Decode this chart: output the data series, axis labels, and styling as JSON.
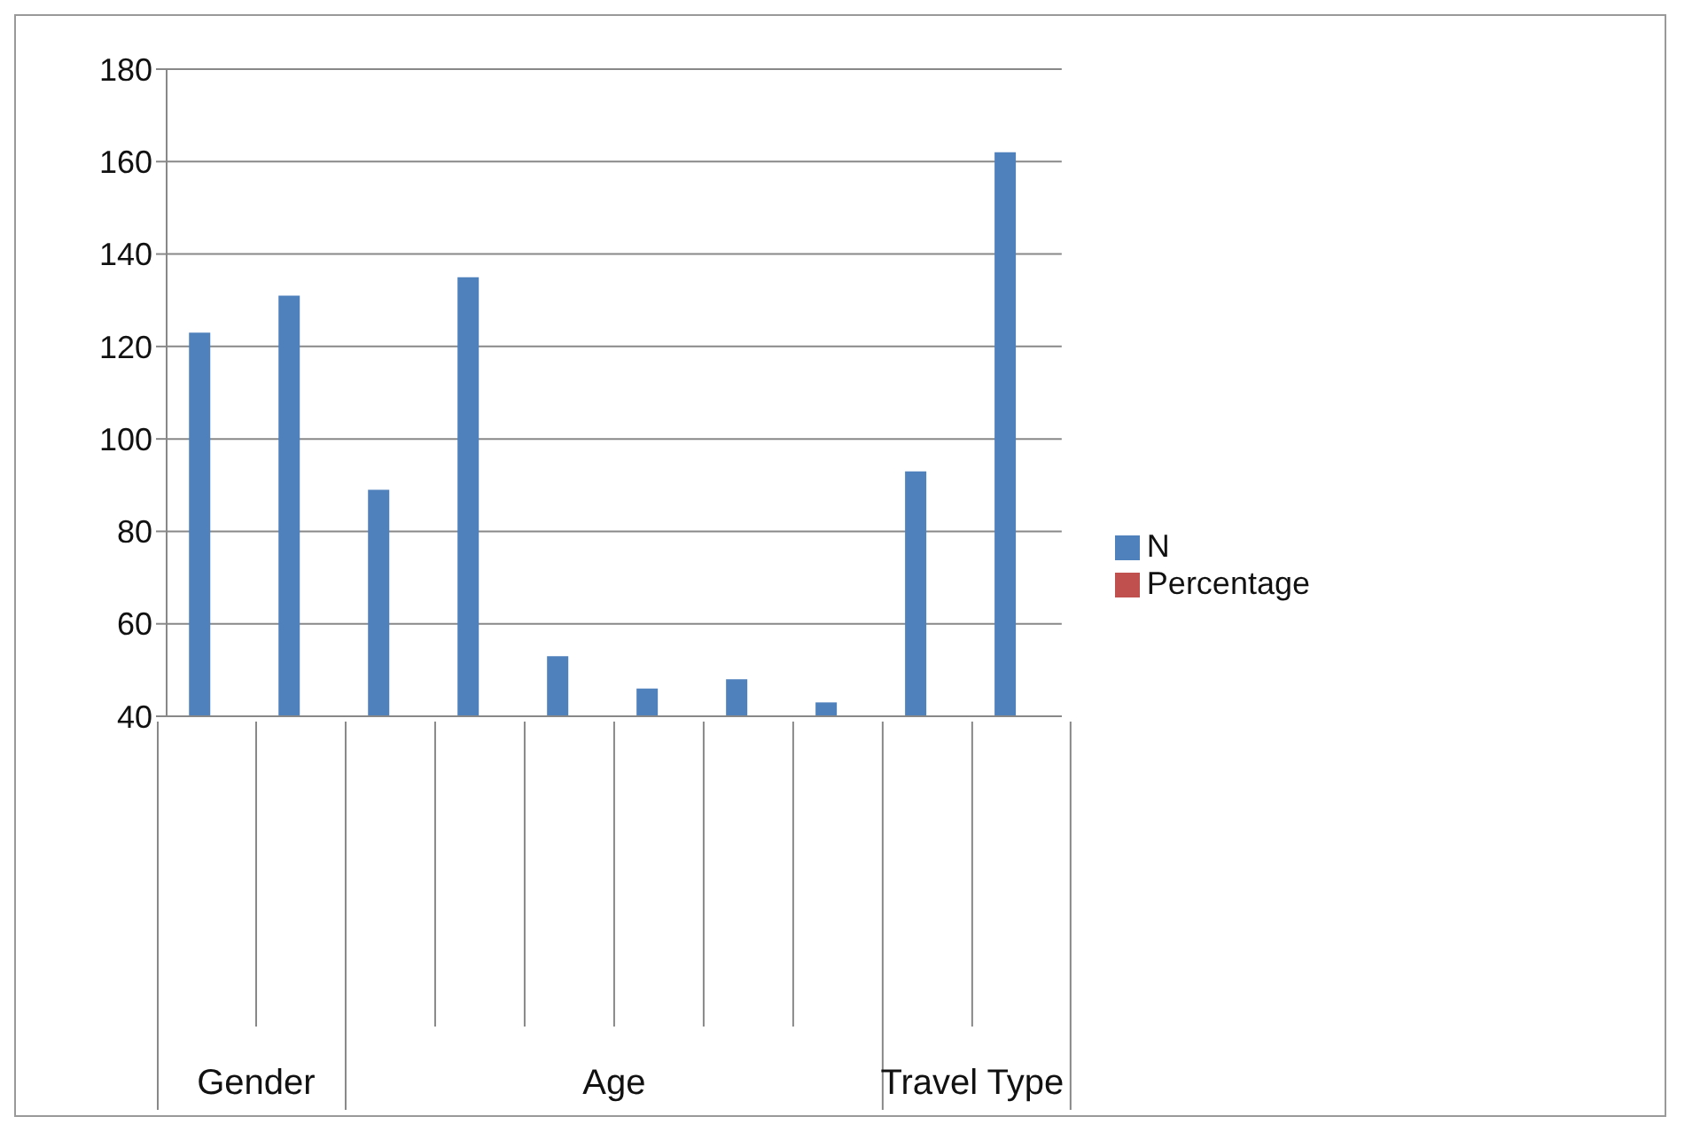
{
  "chart_data": {
    "type": "bar",
    "categories": [
      null,
      null,
      null,
      null,
      null,
      null,
      null,
      null,
      null,
      null
    ],
    "series": [
      {
        "name": "N",
        "color": "#4f81bd",
        "values": [
          123,
          131,
          89,
          135,
          53,
          46,
          48,
          43,
          93,
          162
        ]
      },
      {
        "name": "Percentage",
        "color": "#c0504d",
        "values": [
          null,
          null,
          null,
          null,
          null,
          null,
          null,
          null,
          null,
          null
        ]
      }
    ],
    "ylim": [
      40,
      180
    ],
    "yticks": [
      40,
      60,
      80,
      100,
      120,
      140,
      160,
      180
    ],
    "grid": "y",
    "legend": "right",
    "annotations": [
      "Gender",
      "Age",
      "Travel Type"
    ]
  }
}
